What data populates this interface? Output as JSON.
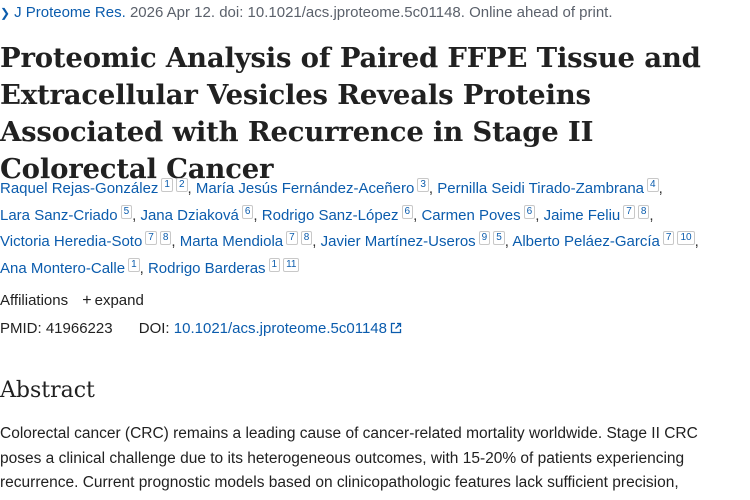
{
  "citation": {
    "journal": "J Proteome Res.",
    "rest": "2026 Apr 12. doi: 10.1021/acs.jproteome.5c01148. Online ahead of print."
  },
  "title": "Proteomic Analysis of Paired FFPE Tissue and Extracellular Vesicles Reveals Proteins Associated with Recurrence in Stage II Colorectal Cancer",
  "authors": [
    {
      "name": "Raquel Rejas-González",
      "affs": [
        "1",
        "2"
      ]
    },
    {
      "name": "María Jesús Fernández-Aceñero",
      "affs": [
        "3"
      ]
    },
    {
      "name": "Pernilla Seidi Tirado-Zambrana",
      "affs": [
        "4"
      ]
    },
    {
      "name": "Lara Sanz-Criado",
      "affs": [
        "5"
      ]
    },
    {
      "name": "Jana Dziaková",
      "affs": [
        "6"
      ]
    },
    {
      "name": "Rodrigo Sanz-López",
      "affs": [
        "6"
      ]
    },
    {
      "name": "Carmen Poves",
      "affs": [
        "6"
      ]
    },
    {
      "name": "Jaime Feliu",
      "affs": [
        "7",
        "8"
      ]
    },
    {
      "name": "Victoria Heredia-Soto",
      "affs": [
        "7",
        "8"
      ]
    },
    {
      "name": "Marta Mendiola",
      "affs": [
        "7",
        "8"
      ]
    },
    {
      "name": "Javier Martínez-Useros",
      "affs": [
        "9",
        "5"
      ]
    },
    {
      "name": "Alberto Peláez-García",
      "affs": [
        "7",
        "10"
      ]
    },
    {
      "name": "Ana Montero-Calle",
      "affs": [
        "1"
      ]
    },
    {
      "name": "Rodrigo Barderas",
      "affs": [
        "1",
        "11"
      ]
    }
  ],
  "affiliations": {
    "label": "Affiliations",
    "expand_label": "expand"
  },
  "ids": {
    "pmid_label": "PMID:",
    "pmid": "41966223",
    "doi_label": "DOI:",
    "doi": "10.1021/acs.jproteome.5c01148"
  },
  "abstract": {
    "heading": "Abstract",
    "text": "Colorectal cancer (CRC) remains a leading cause of cancer-related mortality worldwide. Stage II CRC poses a clinical challenge due to its heterogeneous outcomes, with 15-20% of patients experiencing recurrence. Current prognostic models based on clinicopathologic features lack sufficient precision,"
  },
  "colors": {
    "link": "#0b5cad",
    "text": "#212121",
    "muted": "#5b616b"
  }
}
